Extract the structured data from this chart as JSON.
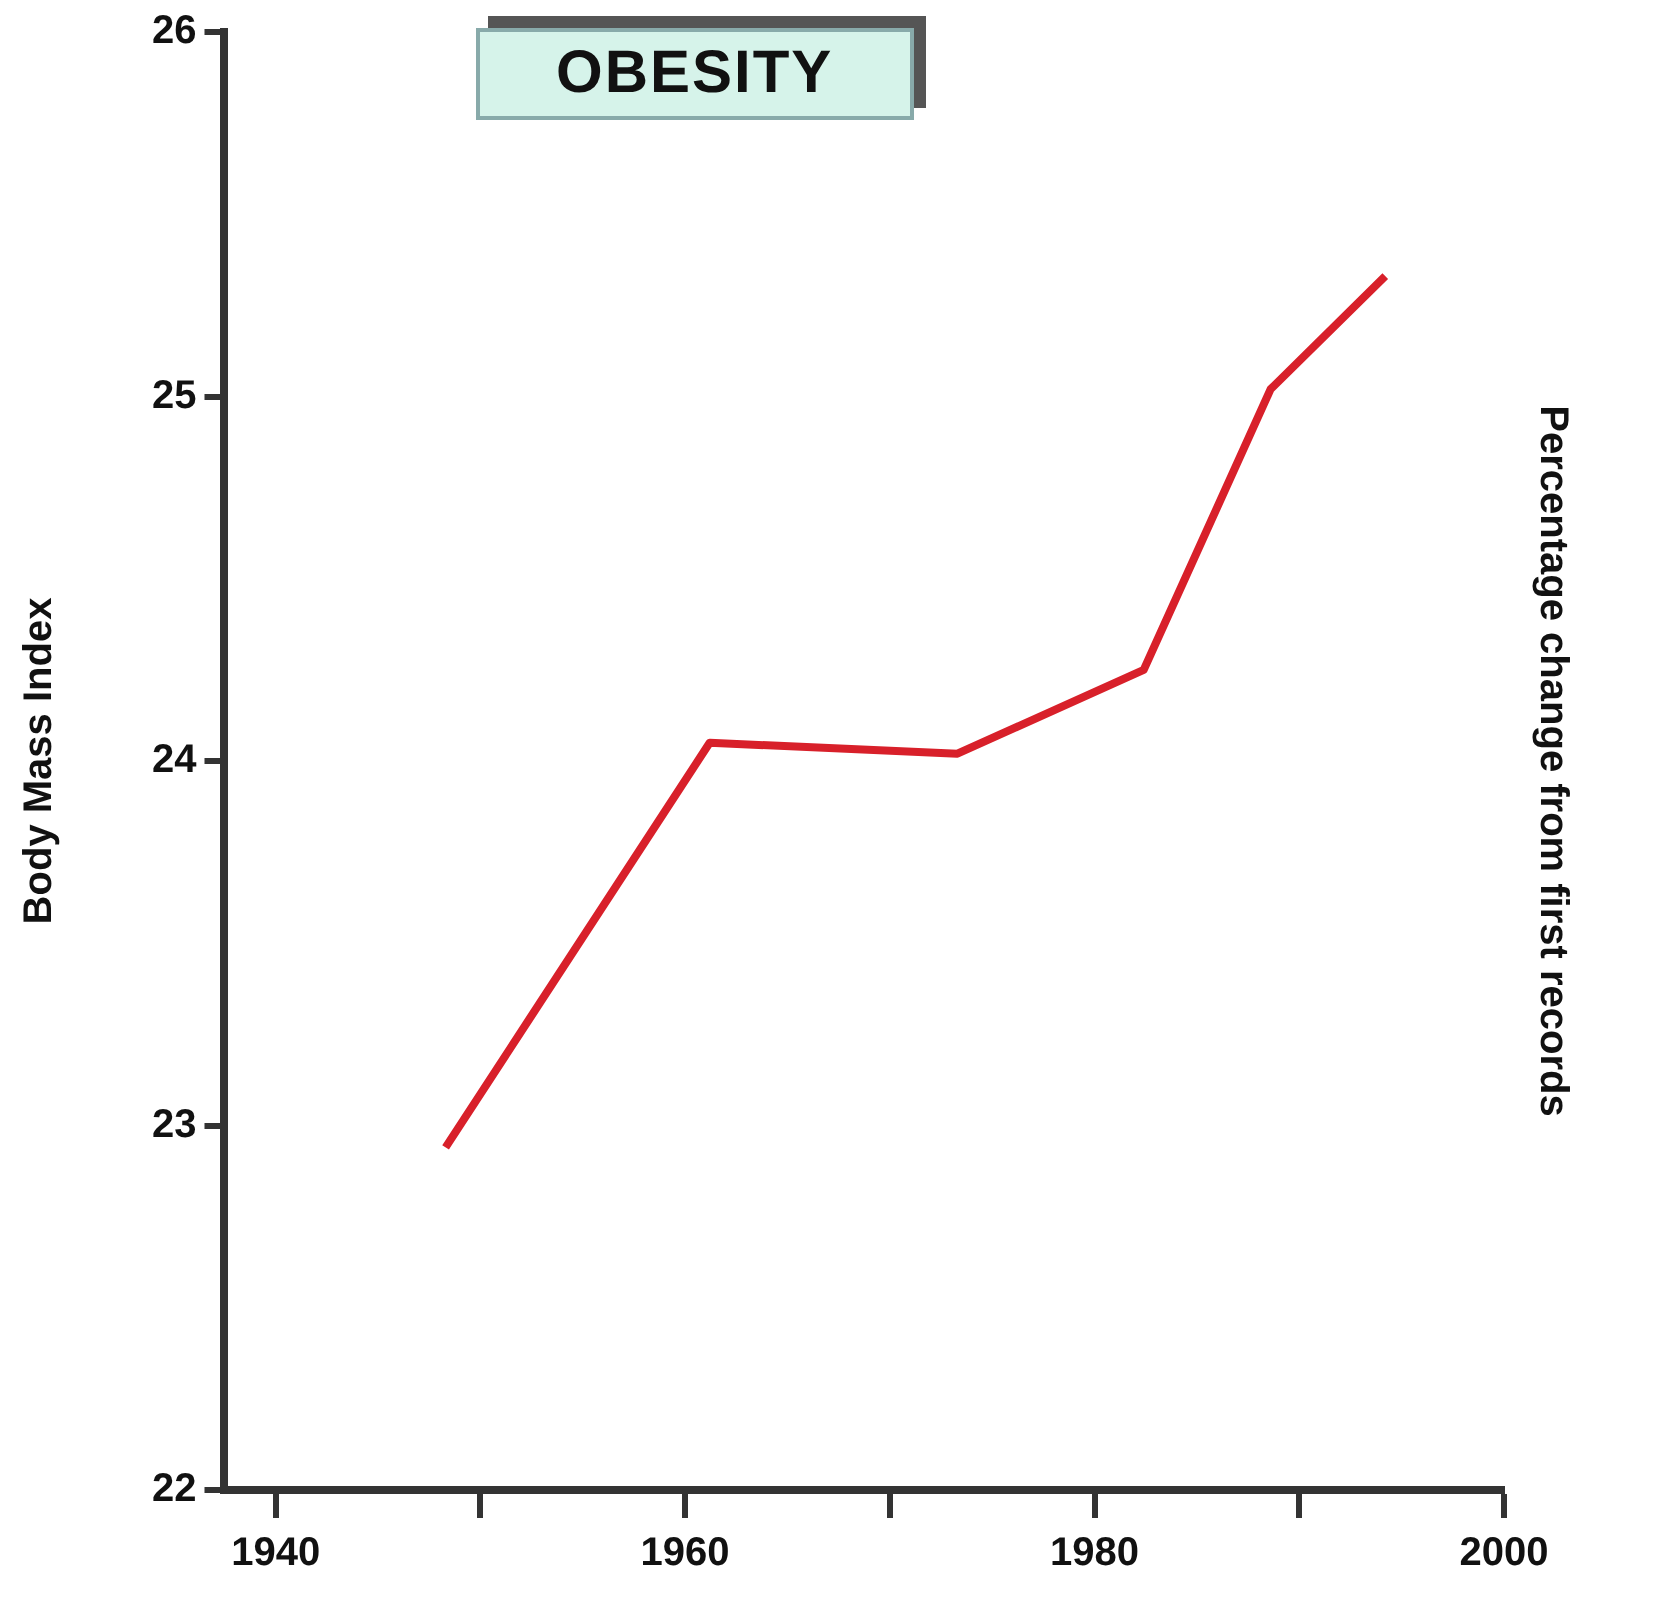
{
  "chart_data": {
    "type": "line",
    "title": "OBESITY",
    "ylabel": "Body Mass Index",
    "y2label": "Percentage change from first records",
    "x": [
      1948.3,
      1961.2,
      1973.3,
      1982.4,
      1988.6,
      1994.2
    ],
    "series": [
      {
        "color": "#d8202a",
        "values": [
          22.94,
          24.05,
          24.02,
          24.25,
          25.02,
          25.33
        ]
      }
    ],
    "xlim": [
      1937.5,
      2000
    ],
    "xticks": [
      1940,
      {
        "value": 1950,
        "label": null
      },
      1960,
      {
        "value": 1970,
        "label": null
      },
      1980,
      {
        "value": 1990,
        "label": null
      },
      2000
    ],
    "ylim": [
      22,
      26
    ],
    "yticks": [
      22,
      23,
      24,
      25,
      26
    ],
    "grid": false,
    "legend": false,
    "marker": "none",
    "line_style": "solid"
  }
}
